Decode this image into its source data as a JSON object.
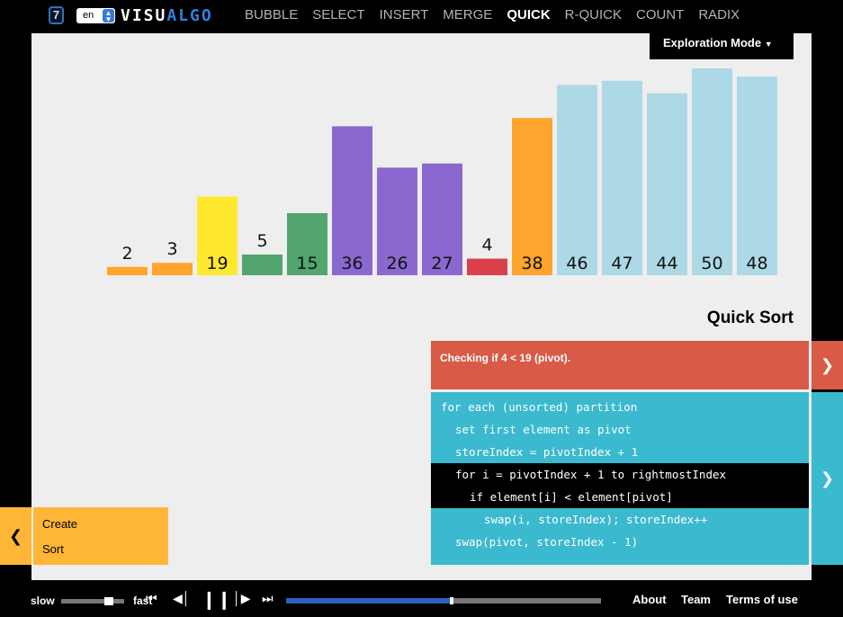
{
  "header": {
    "logo_glyph": "7",
    "language": "en",
    "brand_part1": "VISU",
    "brand_part2": "ALGO",
    "nav": [
      {
        "label": "BUBBLE",
        "active": false
      },
      {
        "label": "SELECT",
        "active": false
      },
      {
        "label": "INSERT",
        "active": false
      },
      {
        "label": "MERGE",
        "active": false
      },
      {
        "label": "QUICK",
        "active": true
      },
      {
        "label": "R-QUICK",
        "active": false
      },
      {
        "label": "COUNT",
        "active": false
      },
      {
        "label": "RADIX",
        "active": false
      }
    ]
  },
  "mode_button": "Exploration Mode",
  "colors": {
    "default": "#add8e6",
    "pivot": "#ffa42c",
    "checking": "#d9404a",
    "sorted": "#ffa42c",
    "less_than_pivot": "#52a56f",
    "greater_than_pivot": "#8b68cf",
    "current_pivot": "#ffe92f"
  },
  "chart_data": {
    "type": "bar",
    "categories": [
      "2",
      "3",
      "19",
      "5",
      "15",
      "36",
      "26",
      "27",
      "4",
      "38",
      "46",
      "47",
      "44",
      "50",
      "48"
    ],
    "values": [
      2,
      3,
      19,
      5,
      15,
      36,
      26,
      27,
      4,
      38,
      46,
      47,
      44,
      50,
      48
    ],
    "bar_states": [
      "sorted",
      "sorted",
      "current_pivot",
      "less_than_pivot",
      "less_than_pivot",
      "greater_than_pivot",
      "greater_than_pivot",
      "greater_than_pivot",
      "checking",
      "pivot",
      "default",
      "default",
      "default",
      "default",
      "default"
    ]
  },
  "algo_title": "Quick Sort",
  "status": "Checking if 4 < 19 (pivot).",
  "code": [
    {
      "text": "for each (unsorted) partition",
      "indent": 0,
      "highlight": false
    },
    {
      "text": "set first element as pivot",
      "indent": 1,
      "highlight": false
    },
    {
      "text": "storeIndex = pivotIndex + 1",
      "indent": 1,
      "highlight": false
    },
    {
      "text": "for i = pivotIndex + 1 to rightmostIndex",
      "indent": 1,
      "highlight": true
    },
    {
      "text": "if element[i] < element[pivot]",
      "indent": 2,
      "highlight": true
    },
    {
      "text": "swap(i, storeIndex); storeIndex++",
      "indent": 3,
      "highlight": false
    },
    {
      "text": "swap(pivot, storeIndex - 1)",
      "indent": 1,
      "highlight": false
    }
  ],
  "actions": [
    "Create",
    "Sort"
  ],
  "player": {
    "slow_label": "slow",
    "fast_label": "fast",
    "progress": 0.52
  },
  "footer": [
    "About",
    "Team",
    "Terms of use"
  ]
}
